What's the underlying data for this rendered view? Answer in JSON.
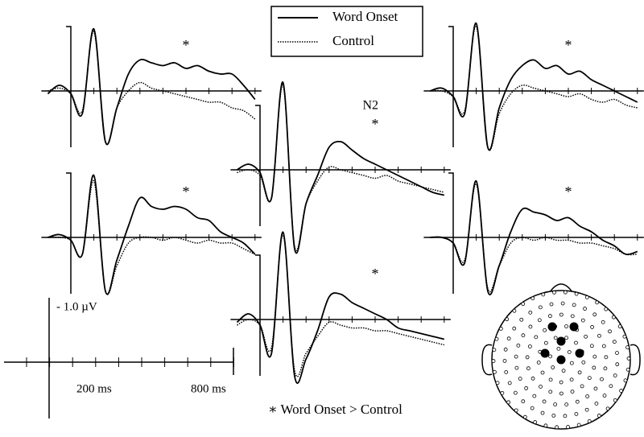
{
  "chart_data": [
    {
      "type": "line",
      "annotation": "*",
      "x": [
        -100,
        -50,
        0,
        50,
        100,
        150,
        200,
        250,
        300,
        350,
        400,
        450,
        500,
        550,
        600,
        650,
        700,
        750,
        800
      ],
      "series": [
        {
          "name": "Word Onset",
          "color": "#000000",
          "values": [
            0.05,
            -0.1,
            0.05,
            0.4,
            -1.1,
            0.9,
            0.3,
            -0.3,
            -0.55,
            -0.5,
            -0.45,
            -0.5,
            -0.4,
            -0.45,
            -0.35,
            -0.3,
            -0.3,
            -0.1,
            0.15
          ]
        },
        {
          "name": "Control",
          "color": "#000000",
          "values": [
            0.0,
            -0.05,
            0.05,
            0.35,
            -1.05,
            0.9,
            0.3,
            0.0,
            -0.15,
            -0.05,
            0.0,
            0.05,
            0.1,
            0.15,
            0.2,
            0.2,
            0.3,
            0.35,
            0.5
          ]
        }
      ]
    },
    {
      "type": "line",
      "annotation": "*",
      "x": [
        -100,
        -50,
        0,
        50,
        100,
        150,
        200,
        250,
        300,
        350,
        400,
        450,
        500,
        550,
        600,
        650,
        700,
        750,
        800
      ],
      "series": [
        {
          "name": "Word Onset",
          "color": "#000000",
          "values": [
            0.0,
            -0.05,
            0.05,
            0.3,
            -1.1,
            0.95,
            0.4,
            -0.2,
            -0.7,
            -0.55,
            -0.5,
            -0.55,
            -0.5,
            -0.35,
            -0.3,
            -0.1,
            0.0,
            0.1,
            0.3
          ]
        },
        {
          "name": "Control",
          "color": "#000000",
          "values": [
            0.0,
            0.0,
            0.05,
            0.3,
            -1.0,
            0.95,
            0.5,
            0.1,
            0.0,
            0.0,
            0.05,
            0.0,
            0.05,
            0.1,
            0.05,
            0.1,
            0.1,
            0.2,
            0.3
          ]
        }
      ]
    },
    {
      "type": "line",
      "annotation": "*",
      "component": "N2",
      "x": [
        -100,
        -50,
        0,
        50,
        100,
        150,
        200,
        250,
        300,
        350,
        400,
        450,
        500,
        550,
        600,
        650,
        700,
        750,
        800
      ],
      "series": [
        {
          "name": "Word Onset",
          "color": "#000000",
          "values": [
            0.0,
            -0.1,
            0.05,
            0.5,
            -1.55,
            1.4,
            0.6,
            0.1,
            -0.4,
            -0.5,
            -0.35,
            -0.2,
            -0.1,
            0.0,
            0.1,
            0.2,
            0.3,
            0.4,
            0.45
          ]
        },
        {
          "name": "Control",
          "color": "#000000",
          "values": [
            0.05,
            0.0,
            0.1,
            0.5,
            -1.5,
            1.35,
            0.6,
            0.2,
            -0.05,
            0.0,
            0.05,
            0.1,
            0.15,
            0.1,
            0.2,
            0.25,
            0.3,
            0.35,
            0.4
          ]
        }
      ]
    },
    {
      "type": "line",
      "annotation": "*",
      "x": [
        -100,
        -50,
        0,
        50,
        100,
        150,
        200,
        250,
        300,
        350,
        400,
        450,
        500,
        550,
        600,
        650,
        700,
        750,
        800
      ],
      "series": [
        {
          "name": "Word Onset",
          "color": "#000000",
          "values": [
            0.05,
            -0.1,
            0.1,
            0.6,
            -1.55,
            1.0,
            0.7,
            0.2,
            -0.4,
            -0.45,
            -0.3,
            -0.2,
            -0.1,
            0.0,
            0.15,
            0.2,
            0.25,
            0.3,
            0.35
          ]
        },
        {
          "name": "Control",
          "color": "#000000",
          "values": [
            0.1,
            0.0,
            0.1,
            0.5,
            -1.5,
            0.9,
            0.6,
            0.3,
            0.05,
            0.1,
            0.15,
            0.15,
            0.2,
            0.2,
            0.25,
            0.3,
            0.35,
            0.4,
            0.45
          ]
        }
      ]
    },
    {
      "type": "line",
      "annotation": "*",
      "x": [
        -100,
        -50,
        0,
        50,
        100,
        150,
        200,
        250,
        300,
        350,
        400,
        450,
        500,
        550,
        600,
        650,
        700,
        750,
        800
      ],
      "series": [
        {
          "name": "Word Onset",
          "color": "#000000",
          "values": [
            0.0,
            -0.05,
            0.1,
            0.4,
            -1.2,
            1.0,
            0.3,
            -0.2,
            -0.45,
            -0.55,
            -0.4,
            -0.45,
            -0.3,
            -0.35,
            -0.2,
            -0.1,
            0.0,
            0.1,
            0.2
          ]
        },
        {
          "name": "Control",
          "color": "#000000",
          "values": [
            0.0,
            0.0,
            0.1,
            0.35,
            -1.15,
            1.0,
            0.4,
            0.05,
            -0.1,
            -0.05,
            0.0,
            0.05,
            0.1,
            0.05,
            0.15,
            0.2,
            0.15,
            0.25,
            0.3
          ]
        }
      ]
    },
    {
      "type": "line",
      "annotation": "*",
      "x": [
        -100,
        -50,
        0,
        50,
        100,
        150,
        200,
        250,
        300,
        350,
        400,
        450,
        500,
        550,
        600,
        650,
        700,
        750,
        800
      ],
      "series": [
        {
          "name": "Word Onset",
          "color": "#000000",
          "values": [
            0.0,
            0.0,
            0.1,
            0.45,
            -1.0,
            0.95,
            0.5,
            -0.1,
            -0.5,
            -0.45,
            -0.4,
            -0.3,
            -0.35,
            -0.2,
            -0.1,
            0.05,
            0.15,
            0.3,
            0.25
          ]
        },
        {
          "name": "Control",
          "color": "#000000",
          "values": [
            0.0,
            0.0,
            0.1,
            0.4,
            -0.95,
            0.9,
            0.5,
            0.1,
            0.0,
            0.05,
            0.0,
            0.05,
            0.05,
            0.1,
            0.1,
            0.15,
            0.2,
            0.3,
            0.3
          ]
        }
      ]
    }
  ],
  "scale": {
    "amplitude_label": "- 1.0 µV",
    "time_labels": [
      "200 ms",
      "800 ms"
    ]
  },
  "footnote": "∗ Word Onset > Control"
}
